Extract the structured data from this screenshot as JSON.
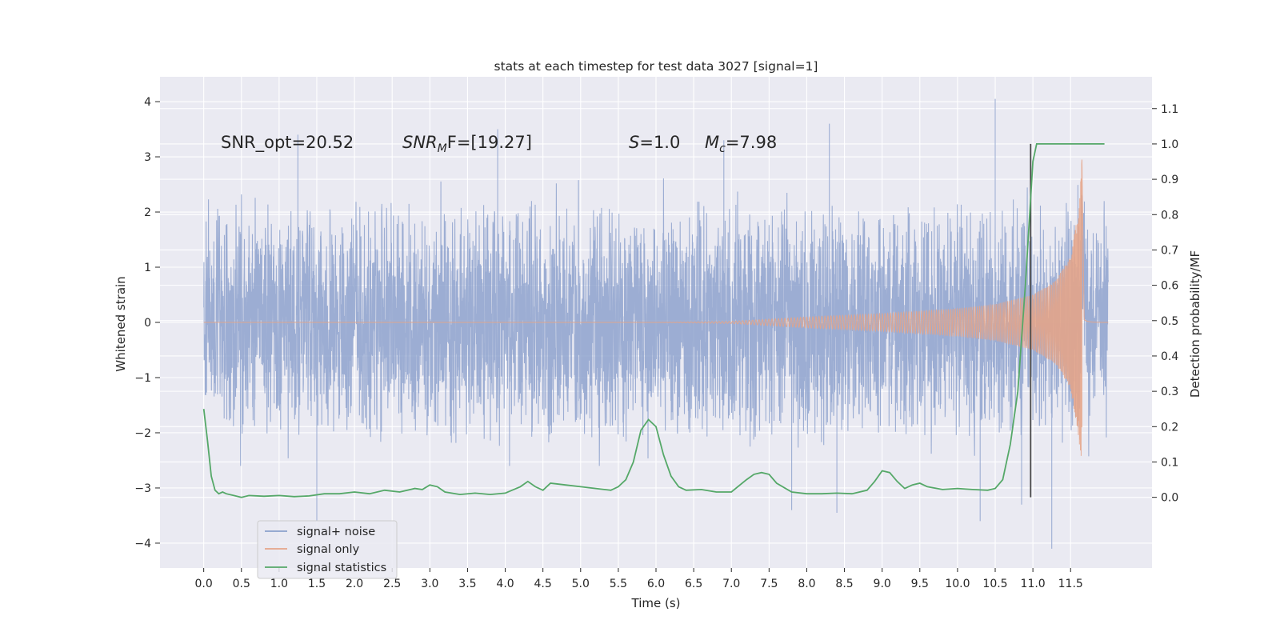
{
  "chart_data": {
    "type": "line",
    "title": "stats at each timestep for test data 3027 [signal=1]",
    "xlabel": "Time (s)",
    "ylabel": "Whitened strain",
    "y2label": "Detection probability/MF",
    "xlim": [
      -0.58,
      12.58
    ],
    "ylim": [
      -4.45,
      4.45
    ],
    "y2lim": [
      -0.2,
      1.19
    ],
    "x_ticks": [
      0.0,
      0.5,
      1.0,
      1.5,
      2.0,
      2.5,
      3.0,
      3.5,
      4.0,
      4.5,
      5.0,
      5.5,
      6.0,
      6.5,
      7.0,
      7.5,
      8.0,
      8.5,
      9.0,
      9.5,
      10.0,
      10.5,
      11.0,
      11.5
    ],
    "x_tick_labels": [
      "0.0",
      "0.5",
      "1.0",
      "1.5",
      "2.0",
      "2.5",
      "3.0",
      "3.5",
      "4.0",
      "4.5",
      "5.0",
      "5.5",
      "6.0",
      "6.5",
      "7.0",
      "7.5",
      "8.0",
      "8.5",
      "9.0",
      "9.5",
      "10.0",
      "10.5",
      "11.0",
      "11.5"
    ],
    "y_ticks": [
      -4,
      -3,
      -2,
      -1,
      0,
      1,
      2,
      3,
      4
    ],
    "y_tick_labels": [
      "−4",
      "−3",
      "−2",
      "−1",
      "0",
      "1",
      "2",
      "3",
      "4"
    ],
    "y2_ticks": [
      0.0,
      0.1,
      0.2,
      0.3,
      0.4,
      0.5,
      0.6,
      0.7,
      0.8,
      0.9,
      1.0,
      1.1
    ],
    "y2_tick_labels": [
      "0.0",
      "0.1",
      "0.2",
      "0.3",
      "0.4",
      "0.5",
      "0.6",
      "0.7",
      "0.8",
      "0.9",
      "1.0",
      "1.1"
    ],
    "grid": true,
    "legend_position": "lower-left",
    "annotations": {
      "snr_opt": "SNR_opt=20.52",
      "snr_mf_main": "SNR",
      "snr_mf_sub": "M",
      "snr_mf_rest": "F=[19.27]",
      "s_main": "S",
      "s_rest": "=1.0",
      "mc_main": "M",
      "mc_sub": "c",
      "mc_rest": "=7.98"
    },
    "marker_time": 10.97,
    "series": [
      {
        "name": "signal+ noise",
        "axis": "left",
        "color": "#8ba0cc",
        "t_range": [
          0.0,
          12.0
        ],
        "typical_envelope": [
          -2.6,
          2.8
        ],
        "extremes": [
          [
            1.25,
            3.4
          ],
          [
            3.9,
            3.5
          ],
          [
            6.9,
            3.3
          ],
          [
            8.3,
            3.6
          ],
          [
            10.5,
            4.05
          ],
          [
            1.5,
            -3.6
          ],
          [
            7.8,
            -3.4
          ],
          [
            8.4,
            -3.45
          ],
          [
            10.3,
            -3.6
          ],
          [
            10.85,
            -3.3
          ],
          [
            11.25,
            -4.1
          ]
        ]
      },
      {
        "name": "signal only",
        "axis": "left",
        "color": "#e5a488",
        "t_start": 0.0,
        "t_coalescence": 11.65,
        "t_end": 12.0,
        "amplitude": [
          [
            7.0,
            0.02
          ],
          [
            8.0,
            0.1
          ],
          [
            9.0,
            0.16
          ],
          [
            10.0,
            0.25
          ],
          [
            10.5,
            0.33
          ],
          [
            11.0,
            0.5
          ],
          [
            11.3,
            0.75
          ],
          [
            11.5,
            1.2
          ],
          [
            11.6,
            2.0
          ],
          [
            11.65,
            2.95
          ]
        ]
      },
      {
        "name": "signal statistics",
        "axis": "right",
        "color": "#55a868",
        "x": [
          0.0,
          0.05,
          0.1,
          0.15,
          0.2,
          0.25,
          0.3,
          0.4,
          0.5,
          0.6,
          0.8,
          1.0,
          1.2,
          1.4,
          1.6,
          1.8,
          2.0,
          2.2,
          2.4,
          2.6,
          2.8,
          2.9,
          3.0,
          3.1,
          3.2,
          3.4,
          3.6,
          3.8,
          4.0,
          4.2,
          4.3,
          4.4,
          4.5,
          4.6,
          4.8,
          5.0,
          5.2,
          5.4,
          5.5,
          5.6,
          5.7,
          5.8,
          5.9,
          6.0,
          6.1,
          6.2,
          6.3,
          6.4,
          6.6,
          6.8,
          7.0,
          7.2,
          7.3,
          7.4,
          7.5,
          7.6,
          7.8,
          8.0,
          8.2,
          8.4,
          8.6,
          8.8,
          8.9,
          9.0,
          9.1,
          9.2,
          9.3,
          9.4,
          9.5,
          9.6,
          9.8,
          10.0,
          10.2,
          10.4,
          10.5,
          10.6,
          10.7,
          10.8,
          10.9,
          11.0,
          11.05,
          11.1,
          11.2,
          11.4,
          11.6,
          11.8,
          11.95
        ],
        "values": [
          0.25,
          0.16,
          0.06,
          0.02,
          0.01,
          0.015,
          0.01,
          0.005,
          0.0,
          0.005,
          0.003,
          0.005,
          0.002,
          0.004,
          0.01,
          0.01,
          0.015,
          0.01,
          0.02,
          0.015,
          0.025,
          0.022,
          0.035,
          0.03,
          0.015,
          0.008,
          0.012,
          0.008,
          0.012,
          0.03,
          0.045,
          0.03,
          0.02,
          0.04,
          0.035,
          0.03,
          0.025,
          0.02,
          0.03,
          0.05,
          0.1,
          0.19,
          0.22,
          0.2,
          0.12,
          0.06,
          0.03,
          0.02,
          0.022,
          0.015,
          0.015,
          0.05,
          0.065,
          0.07,
          0.065,
          0.04,
          0.015,
          0.01,
          0.01,
          0.012,
          0.01,
          0.02,
          0.045,
          0.075,
          0.07,
          0.045,
          0.025,
          0.035,
          0.04,
          0.03,
          0.022,
          0.025,
          0.022,
          0.02,
          0.025,
          0.05,
          0.15,
          0.3,
          0.6,
          0.95,
          1.0,
          1.0,
          1.0,
          1.0,
          1.0,
          1.0,
          1.0
        ]
      }
    ]
  }
}
